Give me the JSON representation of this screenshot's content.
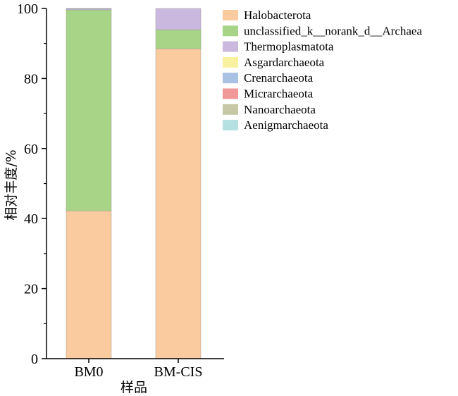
{
  "chart_data": {
    "type": "bar",
    "stacked": true,
    "categories": [
      "BM0",
      "BM-CIS"
    ],
    "xlabel": "样品",
    "ylabel": "相对丰度/%",
    "ylim": [
      0,
      100
    ],
    "yticks": [
      0,
      20,
      40,
      60,
      80,
      100
    ],
    "legend_position": "right",
    "series": [
      {
        "name": "Halobacterota",
        "color": "#fbcba0",
        "values": [
          42.2,
          88.5
        ]
      },
      {
        "name": "unclassified_k__norank_d__Archaea",
        "color": "#a8d488",
        "values": [
          57.4,
          5.4
        ]
      },
      {
        "name": "Thermoplasmatota",
        "color": "#cbb8de",
        "values": [
          0.3,
          6.1
        ]
      },
      {
        "name": "Asgardarchaeota",
        "color": "#f8f2a0",
        "values": [
          0.05,
          0.0
        ]
      },
      {
        "name": "Crenarchaeota",
        "color": "#a9c2e3",
        "values": [
          0.05,
          0.0
        ]
      },
      {
        "name": "Micrarchaeota",
        "color": "#f09797",
        "values": [
          0.0,
          0.0
        ]
      },
      {
        "name": "Nanoarchaeota",
        "color": "#c6c8a8",
        "values": [
          0.0,
          0.0
        ]
      },
      {
        "name": "Aenigmarchaeota",
        "color": "#b5e1e3",
        "values": [
          0.0,
          0.0
        ]
      }
    ]
  }
}
